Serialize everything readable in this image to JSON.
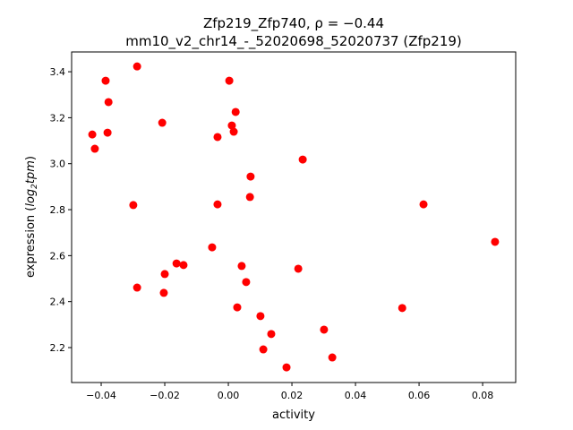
{
  "chart_data": {
    "type": "scatter",
    "title_line1": "Zfp219_Zfp740, ρ = −0.44",
    "title_line2": "mm10_v2_chr14_-_52020698_52020737 (Zfp219)",
    "xlabel": "activity",
    "ylabel_prefix": "expression (",
    "ylabel_math": "log",
    "ylabel_sub": "2",
    "ylabel_math2": "tpm",
    "ylabel_suffix": ")",
    "xlim": [
      -0.0493,
      0.0904
    ],
    "ylim": [
      2.048,
      3.486
    ],
    "xticks": [
      -0.04,
      -0.02,
      0.0,
      0.02,
      0.04,
      0.06,
      0.08
    ],
    "xtick_labels": [
      "−0.04",
      "−0.02",
      "0.00",
      "0.02",
      "0.04",
      "0.06",
      "0.08"
    ],
    "yticks": [
      2.2,
      2.4,
      2.6,
      2.8,
      3.0,
      3.2,
      3.4
    ],
    "ytick_labels": [
      "2.2",
      "2.4",
      "2.6",
      "2.8",
      "3.0",
      "3.2",
      "3.4"
    ],
    "grid": false,
    "marker_color": "#ff0000",
    "points": [
      [
        -0.0428,
        3.127
      ],
      [
        -0.042,
        3.065
      ],
      [
        -0.0386,
        3.361
      ],
      [
        -0.0377,
        3.268
      ],
      [
        -0.038,
        3.135
      ],
      [
        -0.0287,
        3.423
      ],
      [
        -0.0299,
        2.82
      ],
      [
        -0.0287,
        2.461
      ],
      [
        -0.0208,
        3.178
      ],
      [
        -0.02,
        2.52
      ],
      [
        -0.0203,
        2.438
      ],
      [
        -0.0163,
        2.566
      ],
      [
        -0.0141,
        2.559
      ],
      [
        -0.0051,
        2.636
      ],
      [
        -0.0034,
        3.116
      ],
      [
        -0.0034,
        2.823
      ],
      [
        0.0003,
        3.361
      ],
      [
        0.0011,
        3.166
      ],
      [
        0.0023,
        3.225
      ],
      [
        0.0017,
        3.139
      ],
      [
        0.0028,
        2.375
      ],
      [
        0.0042,
        2.555
      ],
      [
        0.0056,
        2.485
      ],
      [
        0.007,
        2.944
      ],
      [
        0.0068,
        2.855
      ],
      [
        0.0101,
        2.337
      ],
      [
        0.011,
        2.192
      ],
      [
        0.0135,
        2.259
      ],
      [
        0.0183,
        2.114
      ],
      [
        0.022,
        2.543
      ],
      [
        0.0234,
        3.018
      ],
      [
        0.0301,
        2.278
      ],
      [
        0.0327,
        2.157
      ],
      [
        0.0547,
        2.372
      ],
      [
        0.0614,
        2.823
      ],
      [
        0.0839,
        2.66
      ]
    ]
  }
}
